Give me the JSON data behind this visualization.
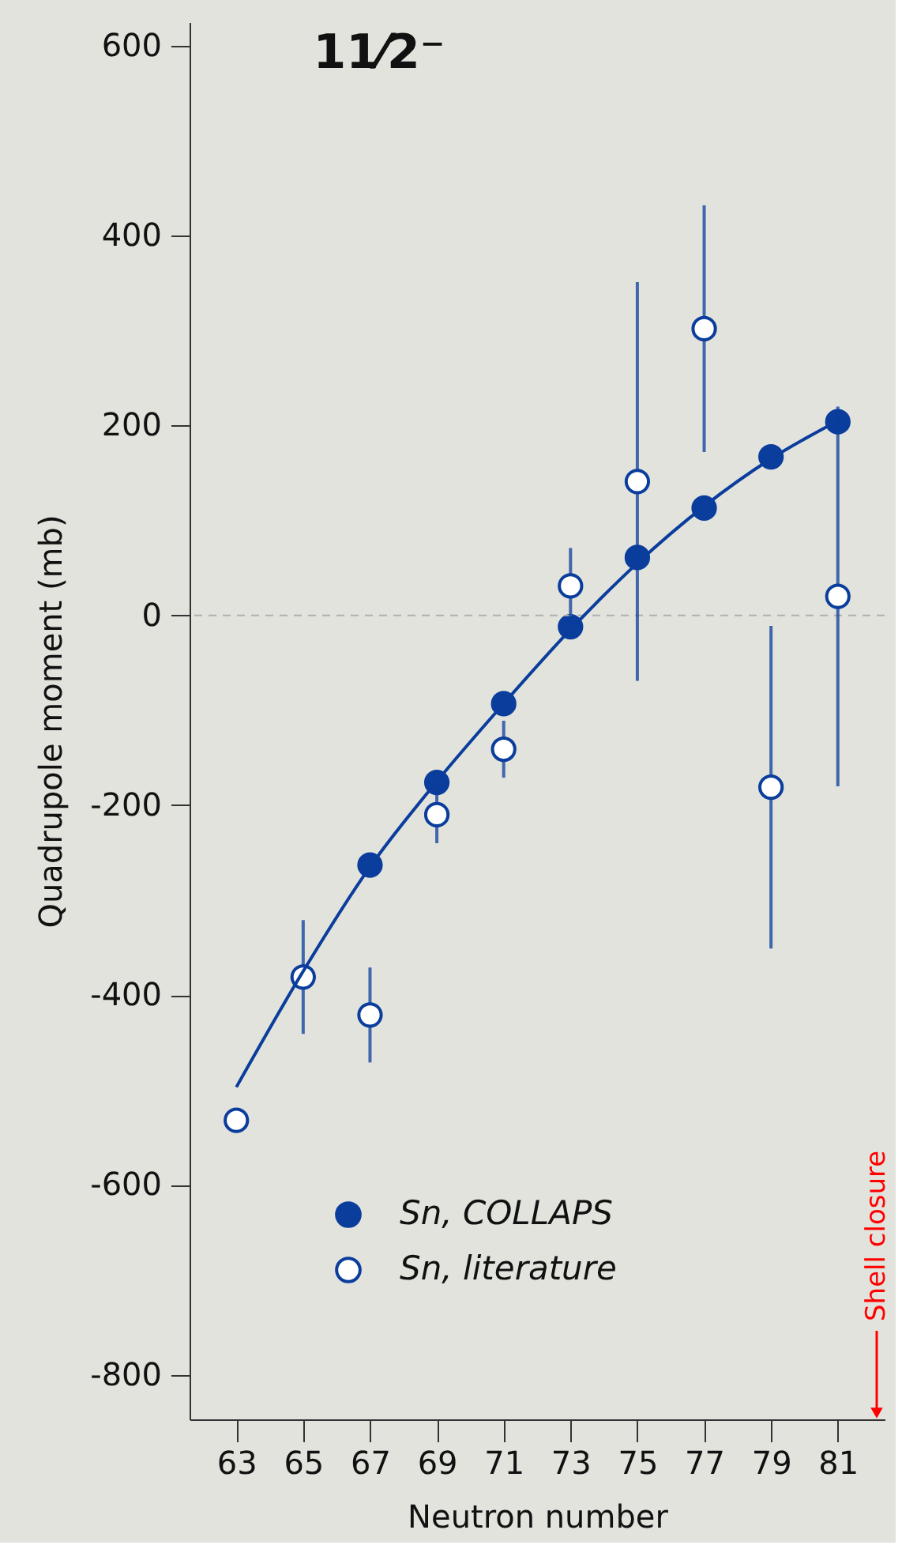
{
  "chart_data": {
    "type": "scatter",
    "title": "11⁄2⁻",
    "xlabel": "Neutron number",
    "ylabel": "Quadrupole moment (mb)",
    "x": [
      63,
      65,
      67,
      69,
      71,
      73,
      75,
      77,
      79,
      81
    ],
    "series": [
      {
        "name": "Sn, COLLAPS",
        "color": "#0a3d9c",
        "x": [
          67,
          69,
          71,
          73,
          75,
          77,
          79,
          81
        ],
        "values": [
          -263,
          -176,
          -93,
          -12,
          61,
          113,
          167,
          204
        ]
      },
      {
        "name": "Sn, literature",
        "color": "#ffffff",
        "values": [
          -532,
          -381,
          -421,
          -210,
          -141,
          31,
          141,
          302,
          -181,
          20
        ],
        "errors": [
          null,
          60,
          50,
          30,
          30,
          40,
          210,
          130,
          170,
          200
        ]
      },
      {
        "type": "line",
        "marker": "none",
        "color": "#0a3d9c",
        "x": [
          63,
          65,
          67,
          69,
          71,
          73,
          75,
          77,
          79,
          81
        ],
        "values": [
          -497,
          -375,
          -265,
          -175,
          -93,
          -15,
          55,
          115,
          165,
          205
        ]
      }
    ],
    "xlim": [
      61.6,
      82.4
    ],
    "ylim": [
      -847,
      625
    ],
    "xticks": [
      63,
      65,
      67,
      69,
      71,
      73,
      75,
      77,
      79,
      81
    ],
    "yticks": [
      -800,
      -600,
      -400,
      -200,
      0,
      200,
      400,
      600
    ],
    "ref_lines": [
      {
        "axis": "y",
        "value": 0,
        "color": "#b0b0b0",
        "line_style": "dashed"
      }
    ],
    "annotations": [
      "Shell closure"
    ],
    "marker": "circle",
    "legend": "bottom left",
    "grid": false
  }
}
